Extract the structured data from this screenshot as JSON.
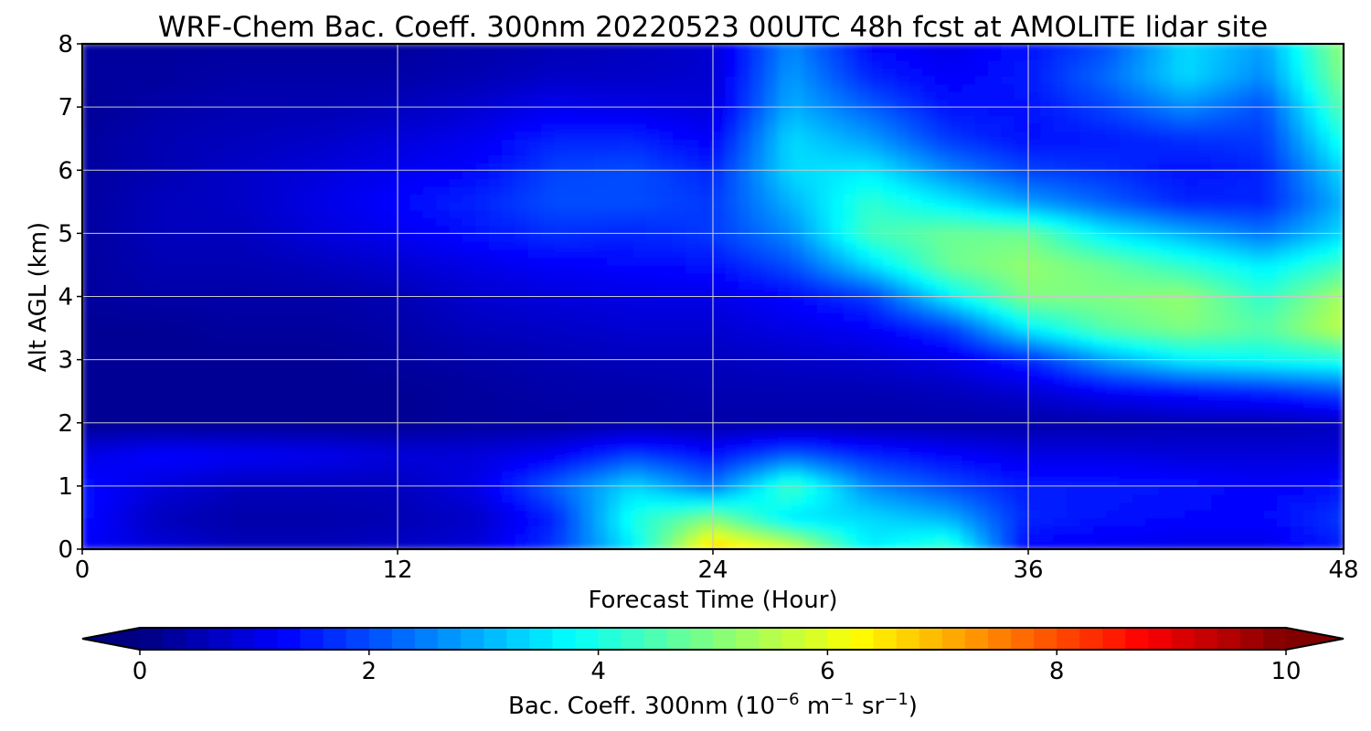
{
  "chart_data": {
    "type": "heatmap",
    "title": "WRF-Chem Bac. Coeff. 300nm  20220523 00UTC 48h fcst at AMOLITE lidar site",
    "xlabel": "Forecast Time (Hour)",
    "ylabel": "Alt AGL (km)",
    "xlim": [
      0,
      48
    ],
    "ylim": [
      0,
      8
    ],
    "x_ticks": [
      0,
      12,
      24,
      36,
      48
    ],
    "y_ticks": [
      0,
      1,
      2,
      3,
      4,
      5,
      6,
      7,
      8
    ],
    "grid": true,
    "colormap": "jet",
    "x": [
      0,
      3,
      6,
      9,
      12,
      15,
      18,
      21,
      24,
      27,
      30,
      33,
      36,
      39,
      42,
      45,
      48
    ],
    "y": [
      0,
      0.5,
      1,
      1.5,
      2,
      2.5,
      3,
      3.5,
      4,
      4.5,
      5,
      5.5,
      6,
      6.5,
      7,
      7.5,
      8
    ],
    "z": [
      [
        1.2,
        0.9,
        0.6,
        0.6,
        0.7,
        0.9,
        1.8,
        3.6,
        6.8,
        6.0,
        3.6,
        4.4,
        1.2,
        1.1,
        1.0,
        1.0,
        1.5
      ],
      [
        1.4,
        0.6,
        0.4,
        0.4,
        0.5,
        0.7,
        1.6,
        4.0,
        5.0,
        3.5,
        3.4,
        3.0,
        1.6,
        1.4,
        1.3,
        1.3,
        1.8
      ],
      [
        1.4,
        0.9,
        0.6,
        0.6,
        0.6,
        1.0,
        2.2,
        3.4,
        2.4,
        4.4,
        2.6,
        2.0,
        1.5,
        1.5,
        1.4,
        1.2,
        1.4
      ],
      [
        1.0,
        1.3,
        1.2,
        1.1,
        0.9,
        0.9,
        1.2,
        1.9,
        1.4,
        2.2,
        1.6,
        1.3,
        1.0,
        1.0,
        0.9,
        0.9,
        0.9
      ],
      [
        0.2,
        0.2,
        0.2,
        0.2,
        0.2,
        0.3,
        0.3,
        0.4,
        0.4,
        0.4,
        0.4,
        0.4,
        0.4,
        0.4,
        0.5,
        0.5,
        0.6
      ],
      [
        0.2,
        0.2,
        0.2,
        0.2,
        0.2,
        0.3,
        0.4,
        0.4,
        0.5,
        0.5,
        0.5,
        0.6,
        0.8,
        1.2,
        1.4,
        1.6,
        2.0
      ],
      [
        0.2,
        0.2,
        0.2,
        0.2,
        0.3,
        0.4,
        0.5,
        0.6,
        0.6,
        0.7,
        0.8,
        1.0,
        1.6,
        2.8,
        3.6,
        3.8,
        4.0
      ],
      [
        0.2,
        0.2,
        0.3,
        0.3,
        0.4,
        0.6,
        0.7,
        0.8,
        0.8,
        1.0,
        1.2,
        1.8,
        3.6,
        4.6,
        5.0,
        4.6,
        5.6
      ],
      [
        0.3,
        0.4,
        0.4,
        0.4,
        0.5,
        0.8,
        0.9,
        1.0,
        1.0,
        1.3,
        1.8,
        3.6,
        5.0,
        5.0,
        5.2,
        4.2,
        5.4
      ],
      [
        0.3,
        0.5,
        0.5,
        0.6,
        0.8,
        1.0,
        1.2,
        1.3,
        1.4,
        2.0,
        3.4,
        4.8,
        5.2,
        4.8,
        4.2,
        3.6,
        4.4
      ],
      [
        0.3,
        0.6,
        0.6,
        0.9,
        1.1,
        1.4,
        1.7,
        1.6,
        1.8,
        2.6,
        4.4,
        4.8,
        4.8,
        3.6,
        3.0,
        2.4,
        3.4
      ],
      [
        0.3,
        0.6,
        0.7,
        1.0,
        1.3,
        1.6,
        2.0,
        2.0,
        1.8,
        3.0,
        4.2,
        3.6,
        2.8,
        2.2,
        1.6,
        1.6,
        3.0
      ],
      [
        0.3,
        0.5,
        0.7,
        0.9,
        1.1,
        1.3,
        1.9,
        2.0,
        1.6,
        3.4,
        3.6,
        2.6,
        1.9,
        1.7,
        1.4,
        1.6,
        3.4
      ],
      [
        0.3,
        0.5,
        0.6,
        0.7,
        0.9,
        1.1,
        1.6,
        1.6,
        1.2,
        3.4,
        2.8,
        1.8,
        1.4,
        1.5,
        1.7,
        1.8,
        4.0
      ],
      [
        0.2,
        0.4,
        0.5,
        0.5,
        0.6,
        0.8,
        1.1,
        1.0,
        0.9,
        3.0,
        2.2,
        1.4,
        1.4,
        1.9,
        2.6,
        2.0,
        4.6
      ],
      [
        0.3,
        0.3,
        0.4,
        0.4,
        0.4,
        0.5,
        0.7,
        0.7,
        0.8,
        2.8,
        1.6,
        1.2,
        1.5,
        2.3,
        3.4,
        2.6,
        5.0
      ],
      [
        0.3,
        0.3,
        0.3,
        0.3,
        0.3,
        0.4,
        0.5,
        0.6,
        0.8,
        2.6,
        1.3,
        1.0,
        1.4,
        2.0,
        3.4,
        2.8,
        5.2
      ]
    ],
    "colorbar": {
      "min": 0,
      "max": 10,
      "ticks": [
        0,
        2,
        4,
        6,
        8,
        10
      ],
      "extend": "both",
      "label_main": "Bac. Coeff. 300nm  (10",
      "label_exp1": "−6",
      "label_mid": " m",
      "label_exp2": "−1",
      "label_mid2": " sr",
      "label_exp3": "−1",
      "label_end": ")"
    }
  }
}
